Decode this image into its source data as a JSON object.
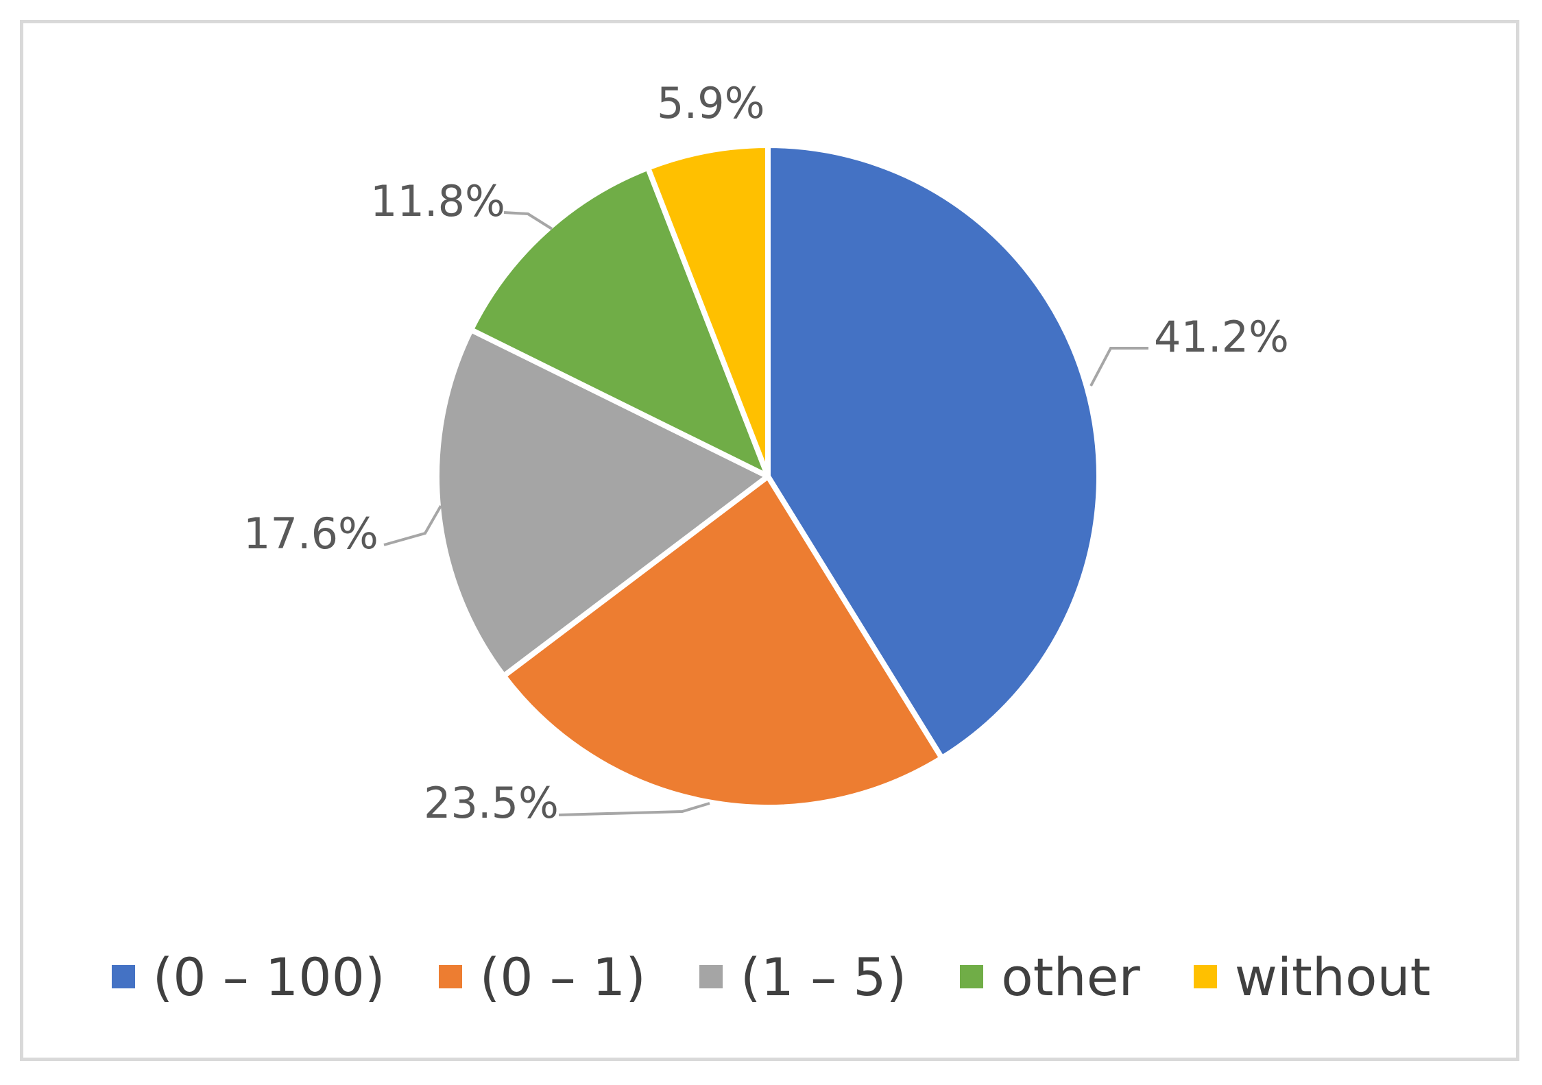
{
  "chart_data": {
    "type": "pie",
    "title": "",
    "categories": [
      "(0 – 100)",
      "(0 – 1)",
      "(1 – 5)",
      "other",
      "without"
    ],
    "values": [
      41.2,
      23.5,
      17.6,
      11.8,
      5.9
    ],
    "labels": [
      "41.2%",
      "23.5%",
      "17.6%",
      "11.8%",
      "5.9%"
    ],
    "colors": [
      "#4472c4",
      "#ed7d31",
      "#a5a5a5",
      "#70ad47",
      "#ffc000"
    ],
    "legend_position": "bottom",
    "start_angle": "12 o'clock",
    "direction": "clockwise"
  }
}
